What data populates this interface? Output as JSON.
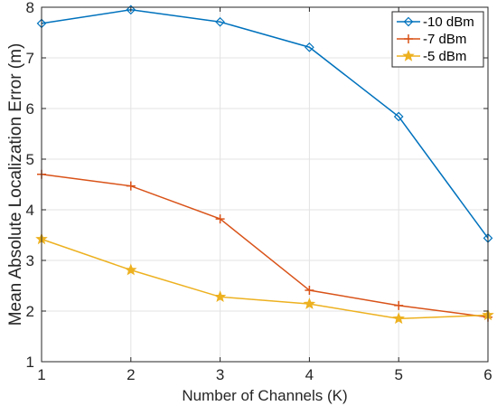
{
  "chart_data": {
    "type": "line",
    "title": "",
    "xlabel": "Number of Channels (K)",
    "ylabel": "Mean Absolute Localization Error (m)",
    "x": [
      1,
      2,
      3,
      4,
      5,
      6
    ],
    "xlim": [
      1,
      6
    ],
    "ylim": [
      1,
      8
    ],
    "xticks": [
      "1",
      "2",
      "3",
      "4",
      "5",
      "6"
    ],
    "yticks": [
      "1",
      "2",
      "3",
      "4",
      "5",
      "6",
      "7",
      "8"
    ],
    "grid": true,
    "legend_position": "top-right",
    "series": [
      {
        "name": "-10 dBm",
        "values": [
          7.68,
          7.95,
          7.71,
          7.21,
          5.84,
          3.44
        ],
        "color": "#0072BD",
        "marker": "diamond"
      },
      {
        "name": "-7 dBm",
        "values": [
          4.7,
          4.47,
          3.82,
          2.41,
          2.11,
          1.88
        ],
        "color": "#D95319",
        "marker": "plus"
      },
      {
        "name": "-5 dBm",
        "values": [
          3.42,
          2.81,
          2.28,
          2.14,
          1.85,
          1.92
        ],
        "color": "#EDB120",
        "marker": "star"
      }
    ]
  }
}
